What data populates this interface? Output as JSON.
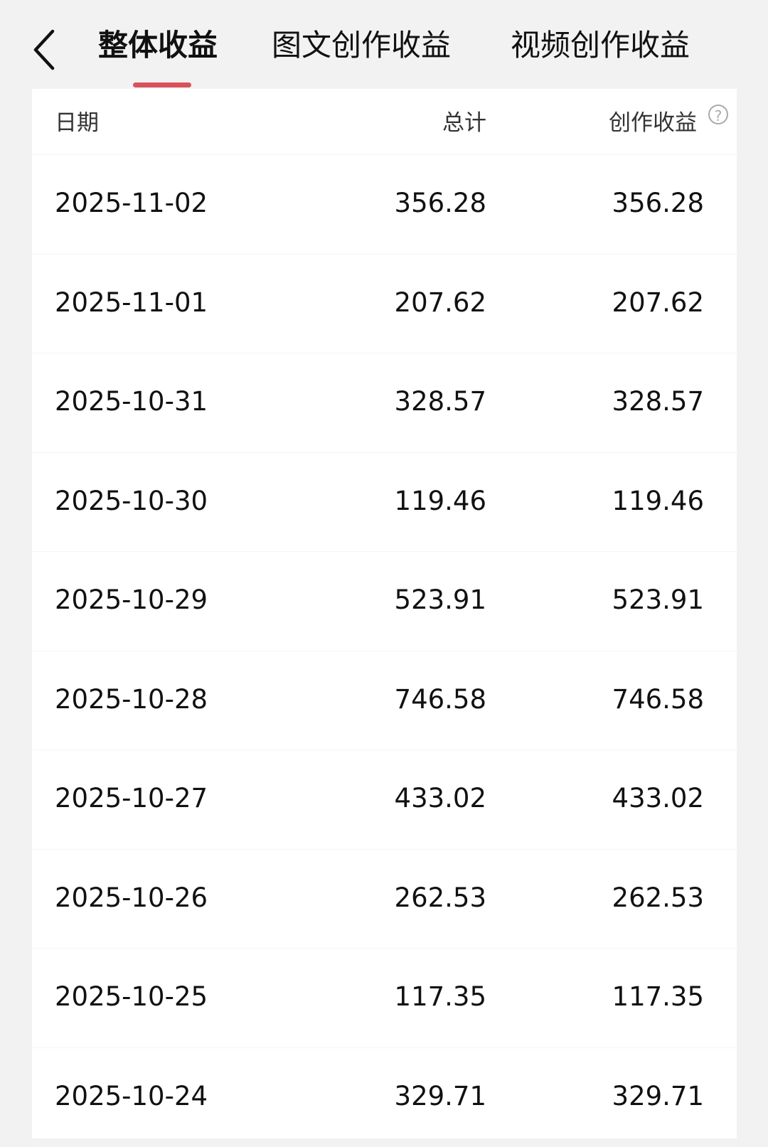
{
  "nav": {
    "back_icon": "chevron-left-icon",
    "tabs": [
      {
        "label": "整体收益",
        "active": true
      },
      {
        "label": "图文创作收益",
        "active": false
      },
      {
        "label": "视频创作收益",
        "active": false
      }
    ],
    "accent_color": "#d9525a"
  },
  "table": {
    "headers": {
      "date": "日期",
      "total": "总计",
      "income": "创作收益",
      "help_icon": "question-circle-icon",
      "help_glyph": "?"
    },
    "rows": [
      {
        "date": "2025-11-02",
        "total": "356.28",
        "income": "356.28"
      },
      {
        "date": "2025-11-01",
        "total": "207.62",
        "income": "207.62"
      },
      {
        "date": "2025-10-31",
        "total": "328.57",
        "income": "328.57"
      },
      {
        "date": "2025-10-30",
        "total": "119.46",
        "income": "119.46"
      },
      {
        "date": "2025-10-29",
        "total": "523.91",
        "income": "523.91"
      },
      {
        "date": "2025-10-28",
        "total": "746.58",
        "income": "746.58"
      },
      {
        "date": "2025-10-27",
        "total": "433.02",
        "income": "433.02"
      },
      {
        "date": "2025-10-26",
        "total": "262.53",
        "income": "262.53"
      },
      {
        "date": "2025-10-25",
        "total": "117.35",
        "income": "117.35"
      },
      {
        "date": "2025-10-24",
        "total": "329.71",
        "income": "329.71"
      }
    ]
  }
}
